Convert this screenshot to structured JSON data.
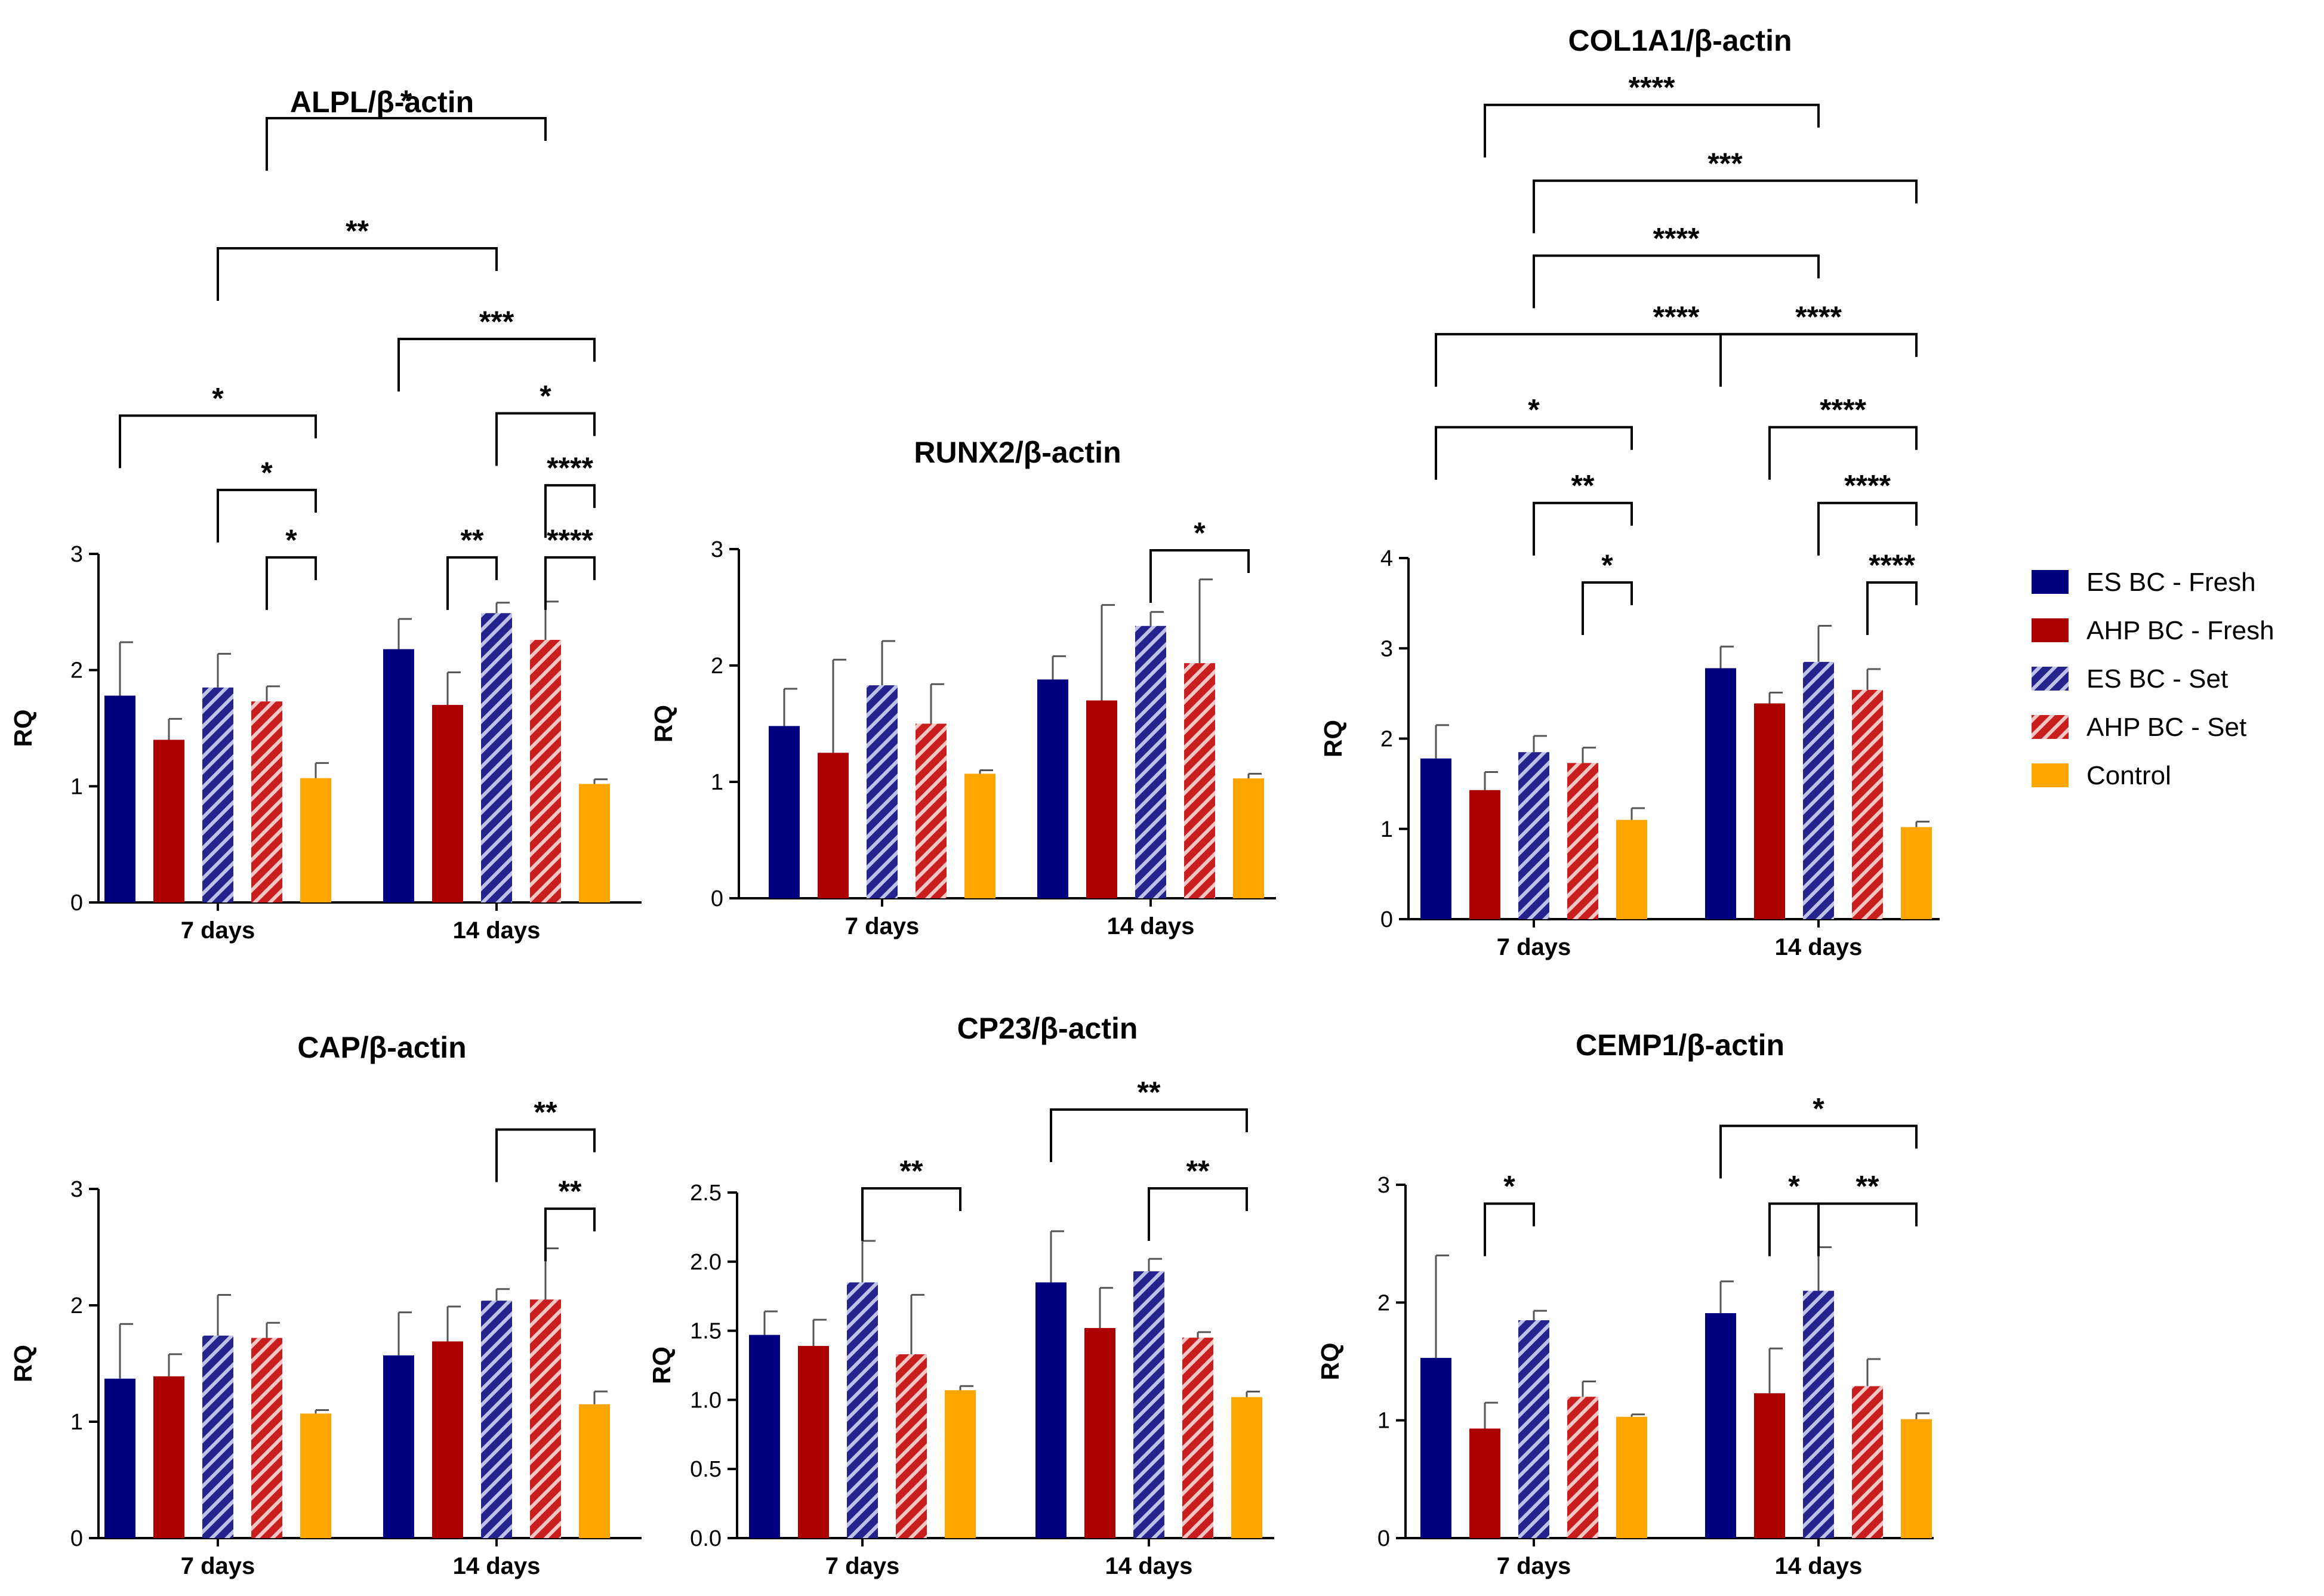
{
  "colors": {
    "es_fresh": "#00007F",
    "ahp_fresh": "#AA0000",
    "es_set_bg": "#24248C",
    "es_set_stripe": "#BFC2E8",
    "ahp_set_bg": "#C81E1E",
    "ahp_set_stripe": "#F4C6C6",
    "control": "#FFA500"
  },
  "legend": [
    {
      "label": "ES BC - Fresh",
      "style": "es_fresh"
    },
    {
      "label": "AHP BC - Fresh",
      "style": "ahp_fresh"
    },
    {
      "label": "ES BC - Set",
      "style": "es_set"
    },
    {
      "label": "AHP BC - Set",
      "style": "ahp_set"
    },
    {
      "label": "Control",
      "style": "control"
    }
  ],
  "chart_data": [
    {
      "id": "alpl",
      "type": "bar",
      "title": "ALPL/β-actin",
      "ylabel": "RQ",
      "ylim": [
        0,
        3
      ],
      "yticks": [
        "0",
        "1",
        "2",
        "3"
      ],
      "categories": [
        "7 days",
        "14 days"
      ],
      "series": [
        {
          "name": "ES BC - Fresh",
          "values": [
            1.78,
            2.18
          ],
          "errors": [
            0.46,
            0.26
          ]
        },
        {
          "name": "AHP BC - Fresh",
          "values": [
            1.4,
            1.7
          ],
          "errors": [
            0.18,
            0.28
          ]
        },
        {
          "name": "ES BC - Set",
          "values": [
            1.85,
            2.49
          ],
          "errors": [
            0.29,
            0.09
          ]
        },
        {
          "name": "AHP BC - Set",
          "values": [
            1.73,
            2.26
          ],
          "errors": [
            0.13,
            0.33
          ]
        },
        {
          "name": "Control",
          "values": [
            1.07,
            1.02
          ],
          "errors": [
            0.13,
            0.04
          ]
        }
      ],
      "brackets": [
        {
          "from": [
            0,
            3
          ],
          "to": [
            1,
            3
          ],
          "level": 6.75,
          "label": "*"
        },
        {
          "from": [
            0,
            2
          ],
          "to": [
            1,
            2
          ],
          "level": 5.63,
          "label": "**"
        },
        {
          "from": [
            0,
            0
          ],
          "to": [
            0,
            4
          ],
          "level": 4.19,
          "label": "*"
        },
        {
          "from": [
            0,
            2
          ],
          "to": [
            0,
            4
          ],
          "level": 3.55,
          "label": "*"
        },
        {
          "from": [
            0,
            3
          ],
          "to": [
            0,
            4
          ],
          "level": 2.97,
          "label": "*"
        },
        {
          "from": [
            1,
            0
          ],
          "to": [
            1,
            4
          ],
          "level": 4.85,
          "label": "***"
        },
        {
          "from": [
            1,
            2
          ],
          "to": [
            1,
            4
          ],
          "level": 4.21,
          "label": "*"
        },
        {
          "from": [
            1,
            3
          ],
          "to": [
            1,
            4
          ],
          "level": 3.59,
          "label": "****"
        },
        {
          "from": [
            1,
            1
          ],
          "to": [
            1,
            2
          ],
          "level": 2.97,
          "label": "**"
        },
        {
          "from": [
            1,
            3
          ],
          "to": [
            1,
            4
          ],
          "level": 2.97,
          "label": "****"
        }
      ]
    },
    {
      "id": "runx2",
      "type": "bar",
      "title": "RUNX2/β-actin",
      "ylabel": "RQ",
      "ylim": [
        0,
        3
      ],
      "yticks": [
        "0",
        "1",
        "2",
        "3"
      ],
      "categories": [
        "7 days",
        "14 days"
      ],
      "series": [
        {
          "name": "ES BC - Fresh",
          "values": [
            1.48,
            1.88
          ],
          "errors": [
            0.32,
            0.2
          ]
        },
        {
          "name": "AHP BC - Fresh",
          "values": [
            1.25,
            1.7
          ],
          "errors": [
            0.8,
            0.82
          ]
        },
        {
          "name": "ES BC - Set",
          "values": [
            1.83,
            2.34
          ],
          "errors": [
            0.38,
            0.12
          ]
        },
        {
          "name": "AHP BC - Set",
          "values": [
            1.5,
            2.02
          ],
          "errors": [
            0.34,
            0.72
          ]
        },
        {
          "name": "Control",
          "values": [
            1.07,
            1.03
          ],
          "errors": [
            0.03,
            0.04
          ]
        }
      ],
      "brackets": [
        {
          "from": [
            1,
            2
          ],
          "to": [
            1,
            4
          ],
          "level": 2.99,
          "label": "*"
        }
      ]
    },
    {
      "id": "col1a1",
      "type": "bar",
      "title": "COL1A1/β-actin",
      "ylabel": "RQ",
      "ylim": [
        0,
        4
      ],
      "yticks": [
        "0",
        "1",
        "2",
        "3",
        "4"
      ],
      "categories": [
        "7 days",
        "14 days"
      ],
      "series": [
        {
          "name": "ES BC - Fresh",
          "values": [
            1.78,
            2.78
          ],
          "errors": [
            0.37,
            0.24
          ]
        },
        {
          "name": "AHP BC - Fresh",
          "values": [
            1.43,
            2.39
          ],
          "errors": [
            0.2,
            0.12
          ]
        },
        {
          "name": "ES BC - Set",
          "values": [
            1.85,
            2.85
          ],
          "errors": [
            0.18,
            0.4
          ]
        },
        {
          "name": "AHP BC - Set",
          "values": [
            1.73,
            2.54
          ],
          "errors": [
            0.17,
            0.23
          ]
        },
        {
          "name": "Control",
          "values": [
            1.1,
            1.02
          ],
          "errors": [
            0.13,
            0.06
          ]
        }
      ],
      "brackets": [
        {
          "from": [
            0,
            1
          ],
          "to": [
            1,
            2
          ],
          "level": 9.02,
          "label": "****"
        },
        {
          "from": [
            0,
            2
          ],
          "to": [
            1,
            4
          ],
          "level": 8.18,
          "label": "***"
        },
        {
          "from": [
            0,
            2
          ],
          "to": [
            1,
            2
          ],
          "level": 7.35,
          "label": "****"
        },
        {
          "from": [
            0,
            0
          ],
          "to": [
            1,
            4
          ],
          "level": 6.48,
          "label": "****"
        },
        {
          "from": [
            1,
            0
          ],
          "to": [
            1,
            4
          ],
          "level": 6.48,
          "label": "****"
        },
        {
          "from": [
            0,
            0
          ],
          "to": [
            0,
            4
          ],
          "level": 5.45,
          "label": "*"
        },
        {
          "from": [
            1,
            1
          ],
          "to": [
            1,
            4
          ],
          "level": 5.45,
          "label": "****"
        },
        {
          "from": [
            0,
            2
          ],
          "to": [
            0,
            4
          ],
          "level": 4.61,
          "label": "**"
        },
        {
          "from": [
            1,
            2
          ],
          "to": [
            1,
            4
          ],
          "level": 4.61,
          "label": "****"
        },
        {
          "from": [
            0,
            3
          ],
          "to": [
            0,
            4
          ],
          "level": 3.73,
          "label": "*"
        },
        {
          "from": [
            1,
            3
          ],
          "to": [
            1,
            4
          ],
          "level": 3.73,
          "label": "****"
        }
      ]
    },
    {
      "id": "cap",
      "type": "bar",
      "title": "CAP/β-actin",
      "ylabel": "RQ",
      "ylim": [
        0,
        3
      ],
      "yticks": [
        "0",
        "1",
        "2",
        "3"
      ],
      "categories": [
        "7 days",
        "14 days"
      ],
      "series": [
        {
          "name": "ES BC - Fresh",
          "values": [
            1.37,
            1.57
          ],
          "errors": [
            0.47,
            0.37
          ]
        },
        {
          "name": "AHP BC - Fresh",
          "values": [
            1.39,
            1.69
          ],
          "errors": [
            0.19,
            0.3
          ]
        },
        {
          "name": "ES BC - Set",
          "values": [
            1.74,
            2.04
          ],
          "errors": [
            0.35,
            0.1
          ]
        },
        {
          "name": "AHP BC - Set",
          "values": [
            1.72,
            2.05
          ],
          "errors": [
            0.13,
            0.44
          ]
        },
        {
          "name": "Control",
          "values": [
            1.07,
            1.15
          ],
          "errors": [
            0.03,
            0.11
          ]
        }
      ],
      "brackets": [
        {
          "from": [
            1,
            2
          ],
          "to": [
            1,
            4
          ],
          "level": 3.51,
          "label": "**"
        },
        {
          "from": [
            1,
            3
          ],
          "to": [
            1,
            4
          ],
          "level": 2.83,
          "label": "**"
        }
      ]
    },
    {
      "id": "cp23",
      "type": "bar",
      "title": "CP23/β-actin",
      "ylabel": "RQ",
      "ylim": [
        0,
        2.5
      ],
      "yticks": [
        "0.0",
        "0.5",
        "1.0",
        "1.5",
        "2.0",
        "2.5"
      ],
      "categories": [
        "7 days",
        "14 days"
      ],
      "series": [
        {
          "name": "ES BC - Fresh",
          "values": [
            1.47,
            1.85
          ],
          "errors": [
            0.17,
            0.37
          ]
        },
        {
          "name": "AHP BC - Fresh",
          "values": [
            1.39,
            1.52
          ],
          "errors": [
            0.19,
            0.29
          ]
        },
        {
          "name": "ES BC - Set",
          "values": [
            1.85,
            1.93
          ],
          "errors": [
            0.3,
            0.09
          ]
        },
        {
          "name": "AHP BC - Set",
          "values": [
            1.33,
            1.45
          ],
          "errors": [
            0.43,
            0.04
          ]
        },
        {
          "name": "Control",
          "values": [
            1.07,
            1.02
          ],
          "errors": [
            0.03,
            0.04
          ]
        }
      ],
      "brackets": [
        {
          "from": [
            0,
            2
          ],
          "to": [
            0,
            4
          ],
          "level": 2.53,
          "label": "**"
        },
        {
          "from": [
            1,
            0
          ],
          "to": [
            1,
            4
          ],
          "level": 3.1,
          "label": "**"
        },
        {
          "from": [
            1,
            2
          ],
          "to": [
            1,
            4
          ],
          "level": 2.53,
          "label": "**"
        }
      ]
    },
    {
      "id": "cemp1",
      "type": "bar",
      "title": "CEMP1/β-actin",
      "ylabel": "RQ",
      "ylim": [
        0,
        3
      ],
      "yticks": [
        "0",
        "1",
        "2",
        "3"
      ],
      "categories": [
        "7 days",
        "14 days"
      ],
      "series": [
        {
          "name": "ES BC - Fresh",
          "values": [
            1.53,
            1.91
          ],
          "errors": [
            0.87,
            0.27
          ]
        },
        {
          "name": "AHP BC - Fresh",
          "values": [
            0.93,
            1.23
          ],
          "errors": [
            0.22,
            0.38
          ]
        },
        {
          "name": "ES BC - Set",
          "values": [
            1.85,
            2.1
          ],
          "errors": [
            0.08,
            0.37
          ]
        },
        {
          "name": "AHP BC - Set",
          "values": [
            1.2,
            1.29
          ],
          "errors": [
            0.13,
            0.23
          ]
        },
        {
          "name": "Control",
          "values": [
            1.03,
            1.01
          ],
          "errors": [
            0.02,
            0.05
          ]
        }
      ],
      "brackets": [
        {
          "from": [
            0,
            1
          ],
          "to": [
            0,
            2
          ],
          "level": 2.84,
          "label": "*"
        },
        {
          "from": [
            1,
            0
          ],
          "to": [
            1,
            4
          ],
          "level": 3.5,
          "label": "*"
        },
        {
          "from": [
            1,
            1
          ],
          "to": [
            1,
            2
          ],
          "level": 2.84,
          "label": "*"
        },
        {
          "from": [
            1,
            2
          ],
          "to": [
            1,
            4
          ],
          "level": 2.84,
          "label": "**"
        }
      ]
    }
  ]
}
